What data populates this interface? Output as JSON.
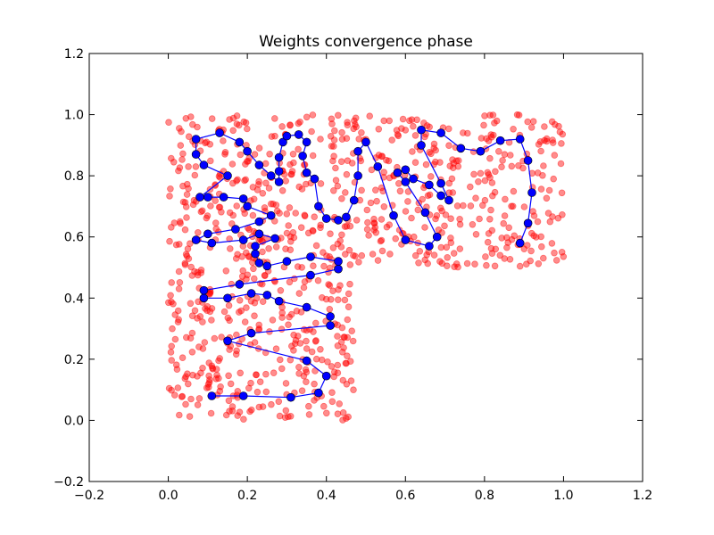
{
  "chart_data": {
    "type": "scatter",
    "title": "Weights convergence phase",
    "xlabel": "",
    "ylabel": "",
    "xlim": [
      -0.2,
      1.2
    ],
    "ylim": [
      -0.2,
      1.2
    ],
    "x_ticks": [
      -0.2,
      0.0,
      0.2,
      0.4,
      0.6,
      0.8,
      1.0,
      1.2
    ],
    "y_ticks": [
      -0.2,
      0.0,
      0.2,
      0.4,
      0.6,
      0.8,
      1.0,
      1.2
    ],
    "x_tick_labels": [
      "−0.2",
      "0.0",
      "0.2",
      "0.4",
      "0.6",
      "0.8",
      "1.0",
      "1.2"
    ],
    "y_tick_labels": [
      "−0.2",
      "0.0",
      "0.2",
      "0.4",
      "0.6",
      "0.8",
      "1.0",
      "1.2"
    ],
    "grid": false,
    "colors": {
      "points": "#ff0000",
      "weights_line": "#0000ff",
      "weights_marker": "#0000ff"
    },
    "series": [
      {
        "kind": "scatter",
        "distribution": "uniform in the union of x 0.0–0.47, y 0.0–1.0 and x 0.0–1.0, y 0.5–1.0",
        "opacity": 0.45,
        "regions": [
          {
            "x": [
              0.0,
              0.47
            ],
            "y": [
              0.0,
              0.5
            ],
            "count": 300
          },
          {
            "x": [
              0.0,
              1.0
            ],
            "y": [
              0.5,
              1.0
            ],
            "count": 600
          }
        ]
      },
      {
        "kind": "line-with-markers",
        "points": [
          [
            0.11,
            0.08
          ],
          [
            0.19,
            0.08
          ],
          [
            0.31,
            0.075
          ],
          [
            0.38,
            0.09
          ],
          [
            0.4,
            0.145
          ],
          [
            0.35,
            0.195
          ],
          [
            0.15,
            0.26
          ],
          [
            0.21,
            0.285
          ],
          [
            0.41,
            0.31
          ],
          [
            0.41,
            0.34
          ],
          [
            0.35,
            0.37
          ],
          [
            0.28,
            0.39
          ],
          [
            0.25,
            0.41
          ],
          [
            0.21,
            0.415
          ],
          [
            0.15,
            0.4
          ],
          [
            0.09,
            0.4
          ],
          [
            0.09,
            0.425
          ],
          [
            0.18,
            0.445
          ],
          [
            0.36,
            0.475
          ],
          [
            0.43,
            0.495
          ],
          [
            0.43,
            0.52
          ],
          [
            0.36,
            0.535
          ],
          [
            0.3,
            0.52
          ],
          [
            0.25,
            0.505
          ],
          [
            0.23,
            0.515
          ],
          [
            0.22,
            0.545
          ],
          [
            0.22,
            0.57
          ],
          [
            0.27,
            0.595
          ],
          [
            0.23,
            0.61
          ],
          [
            0.19,
            0.59
          ],
          [
            0.11,
            0.58
          ],
          [
            0.07,
            0.59
          ],
          [
            0.1,
            0.61
          ],
          [
            0.17,
            0.625
          ],
          [
            0.23,
            0.65
          ],
          [
            0.26,
            0.67
          ],
          [
            0.2,
            0.7
          ],
          [
            0.19,
            0.725
          ],
          [
            0.14,
            0.73
          ],
          [
            0.1,
            0.73
          ],
          [
            0.08,
            0.73
          ],
          [
            0.15,
            0.8
          ],
          [
            0.09,
            0.835
          ],
          [
            0.07,
            0.87
          ],
          [
            0.07,
            0.92
          ],
          [
            0.13,
            0.94
          ],
          [
            0.18,
            0.91
          ],
          [
            0.2,
            0.88
          ],
          [
            0.23,
            0.835
          ],
          [
            0.26,
            0.8
          ],
          [
            0.28,
            0.78
          ],
          [
            0.28,
            0.815
          ],
          [
            0.28,
            0.86
          ],
          [
            0.29,
            0.91
          ],
          [
            0.3,
            0.93
          ],
          [
            0.33,
            0.935
          ],
          [
            0.35,
            0.91
          ],
          [
            0.34,
            0.865
          ],
          [
            0.35,
            0.81
          ],
          [
            0.37,
            0.79
          ],
          [
            0.38,
            0.7
          ],
          [
            0.4,
            0.66
          ],
          [
            0.43,
            0.655
          ],
          [
            0.45,
            0.665
          ],
          [
            0.47,
            0.72
          ],
          [
            0.48,
            0.8
          ],
          [
            0.48,
            0.88
          ],
          [
            0.5,
            0.91
          ],
          [
            0.53,
            0.83
          ],
          [
            0.57,
            0.67
          ],
          [
            0.6,
            0.59
          ],
          [
            0.66,
            0.57
          ],
          [
            0.68,
            0.6
          ],
          [
            0.65,
            0.68
          ],
          [
            0.6,
            0.78
          ],
          [
            0.58,
            0.81
          ],
          [
            0.6,
            0.82
          ],
          [
            0.62,
            0.79
          ],
          [
            0.66,
            0.77
          ],
          [
            0.69,
            0.735
          ],
          [
            0.71,
            0.72
          ],
          [
            0.69,
            0.775
          ],
          [
            0.64,
            0.9
          ],
          [
            0.64,
            0.95
          ],
          [
            0.69,
            0.94
          ],
          [
            0.74,
            0.89
          ],
          [
            0.79,
            0.88
          ],
          [
            0.84,
            0.915
          ],
          [
            0.89,
            0.92
          ],
          [
            0.91,
            0.85
          ],
          [
            0.92,
            0.745
          ],
          [
            0.91,
            0.645
          ],
          [
            0.89,
            0.58
          ]
        ]
      }
    ]
  }
}
